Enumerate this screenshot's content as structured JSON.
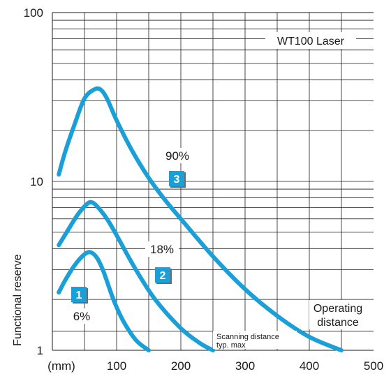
{
  "chart_data": {
    "type": "line",
    "title": "",
    "xlabel": "(mm)",
    "ylabel": "Functional reserve",
    "xlim": [
      0,
      500
    ],
    "ylim": [
      1,
      100
    ],
    "yscale": "log",
    "x_ticks": [
      "100",
      "200",
      "300",
      "400",
      "500"
    ],
    "y_ticks": [
      "1",
      "10",
      "100"
    ],
    "grid": true,
    "legend_label": "WT100 Laser",
    "series": [
      {
        "badge": "1",
        "label": "6%",
        "color": "#1a9fd8",
        "x": [
          10,
          20,
          35,
          50,
          60,
          70,
          80,
          95,
          110,
          130,
          150
        ],
        "y": [
          2.2,
          2.6,
          3.2,
          3.7,
          3.8,
          3.5,
          2.9,
          2.0,
          1.5,
          1.15,
          1.0
        ]
      },
      {
        "badge": "2",
        "label": "18%",
        "color": "#1a9fd8",
        "x": [
          10,
          25,
          40,
          55,
          62,
          70,
          85,
          100,
          130,
          160,
          200,
          230,
          250
        ],
        "y": [
          4.2,
          5.2,
          6.4,
          7.4,
          7.5,
          7.1,
          6.0,
          4.8,
          3.0,
          2.0,
          1.35,
          1.1,
          1.0
        ]
      },
      {
        "badge": "3",
        "label": "90%",
        "color": "#1a9fd8",
        "x": [
          10,
          20,
          35,
          50,
          65,
          75,
          85,
          100,
          125,
          150,
          175,
          200,
          250,
          300,
          350,
          400,
          450
        ],
        "y": [
          11,
          15,
          22,
          31,
          35,
          35,
          31,
          23,
          15,
          10.5,
          7.8,
          6.0,
          3.6,
          2.3,
          1.6,
          1.2,
          1.0
        ]
      }
    ],
    "annotations": {
      "operating_line1": "Operating",
      "operating_line2": "distance",
      "scanning_line1": "Scanning distance",
      "scanning_line2": "typ. max",
      "scanning_level": 1.3
    }
  }
}
